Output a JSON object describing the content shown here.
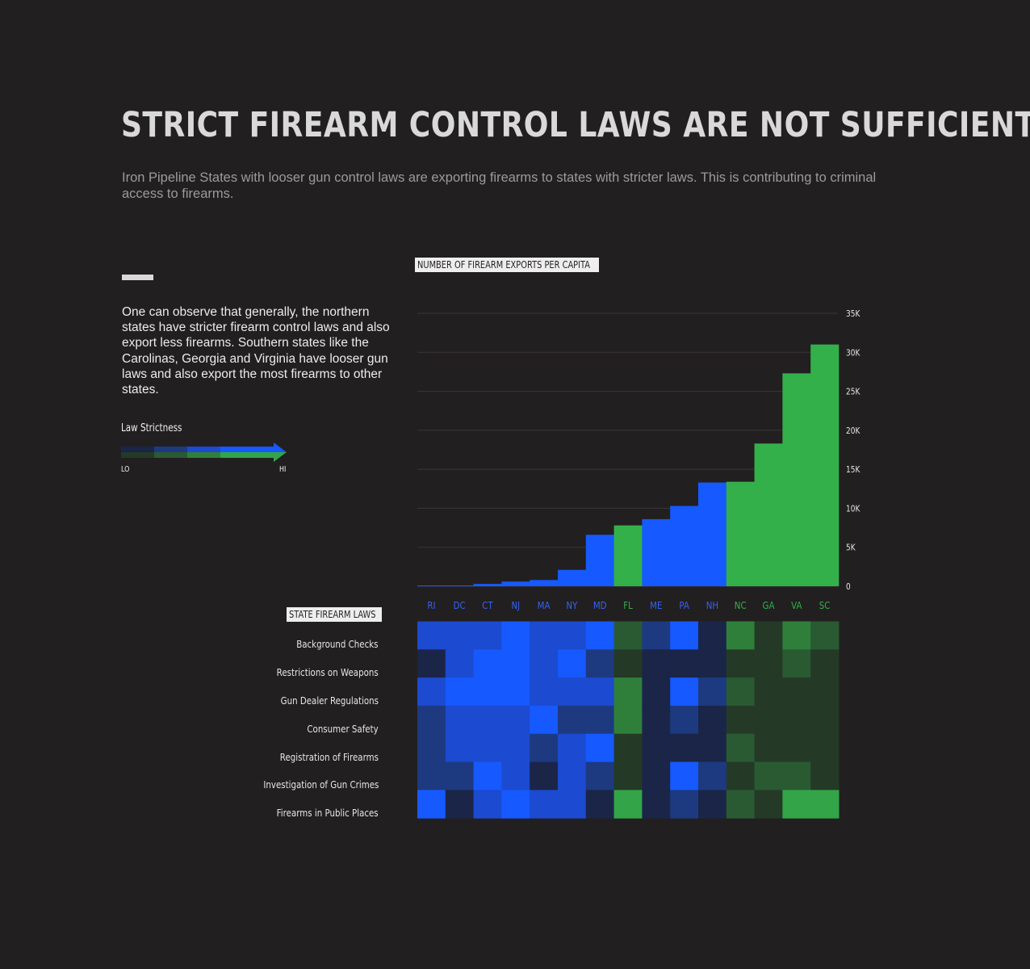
{
  "header": {
    "title": "STRICT FIREARM CONTROL LAWS ARE NOT SUFFICIENT",
    "subtitle": "Iron Pipeline States with looser gun control laws are exporting firearms to states with stricter laws. This is contributing to criminal access to firearms."
  },
  "sidebar": {
    "description": "One can observe that generally, the northern states have stricter firearm control laws and also export less firearms. Southern states like the Carolinas, Georgia and Virginia have looser gun laws and also export the most firearms to other states.",
    "legend": {
      "title": "Law Strictness",
      "lo": "LO",
      "hi": "HI"
    }
  },
  "colors": {
    "background": "#221f20",
    "blue": "#1659ff",
    "green": "#33b04a",
    "blue_scale": [
      "#1a2548",
      "#1d3a80",
      "#1c4ad0",
      "#1659ff"
    ],
    "green_scale": [
      "#243a27",
      "#2a5a32",
      "#2f7f3b",
      "#33a548"
    ]
  },
  "chart_data": [
    {
      "type": "bar",
      "title": "NUMBER OF FIREARM EXPORTS PER CAPITA",
      "categories": [
        "RI",
        "DC",
        "CT",
        "NJ",
        "MA",
        "NY",
        "MD",
        "FL",
        "ME",
        "PA",
        "NH",
        "NC",
        "GA",
        "VA",
        "SC"
      ],
      "values": [
        100,
        100,
        300,
        600,
        800,
        2100,
        6600,
        7800,
        8600,
        10300,
        13300,
        13400,
        18300,
        27300,
        31000
      ],
      "groups": [
        "blue",
        "blue",
        "blue",
        "blue",
        "blue",
        "blue",
        "blue",
        "green",
        "blue",
        "blue",
        "blue",
        "green",
        "green",
        "green",
        "green"
      ],
      "ylim": [
        0,
        35000
      ],
      "yticks": [
        "0",
        "5K",
        "10K",
        "15K",
        "20K",
        "25K",
        "30K",
        "35K"
      ],
      "ytick_values": [
        0,
        5000,
        10000,
        15000,
        20000,
        25000,
        30000,
        35000
      ],
      "grid": true
    },
    {
      "type": "heatmap",
      "title": "STATE FIREARM LAWS",
      "columns": [
        "RI",
        "DC",
        "CT",
        "NJ",
        "MA",
        "NY",
        "MD",
        "FL",
        "ME",
        "PA",
        "NH",
        "NC",
        "GA",
        "VA",
        "SC"
      ],
      "rows": [
        "Background Checks",
        "Restrictions on Weapons",
        "Gun Dealer Regulations",
        "Consumer Safety",
        "Registration of Firearms",
        "Investigation of Gun Crimes",
        "Firearms in Public Places"
      ],
      "values": [
        [
          3,
          3,
          3,
          4,
          3,
          3,
          4,
          2,
          2,
          4,
          1,
          3,
          1,
          3,
          2
        ],
        [
          1,
          3,
          4,
          4,
          3,
          4,
          2,
          1,
          1,
          1,
          1,
          1,
          1,
          2,
          1
        ],
        [
          3,
          4,
          4,
          4,
          3,
          3,
          3,
          3,
          1,
          4,
          2,
          2,
          1,
          1,
          1
        ],
        [
          2,
          3,
          3,
          3,
          4,
          2,
          2,
          3,
          1,
          2,
          1,
          1,
          1,
          1,
          1
        ],
        [
          2,
          3,
          3,
          3,
          2,
          3,
          4,
          1,
          1,
          1,
          1,
          2,
          1,
          1,
          1
        ],
        [
          2,
          2,
          4,
          3,
          1,
          3,
          2,
          1,
          1,
          4,
          2,
          1,
          2,
          2,
          1
        ],
        [
          4,
          1,
          3,
          4,
          3,
          3,
          1,
          4,
          1,
          2,
          1,
          2,
          1,
          4,
          4
        ]
      ],
      "scale_note": "1 = LO, 4 = HI strictness"
    }
  ]
}
